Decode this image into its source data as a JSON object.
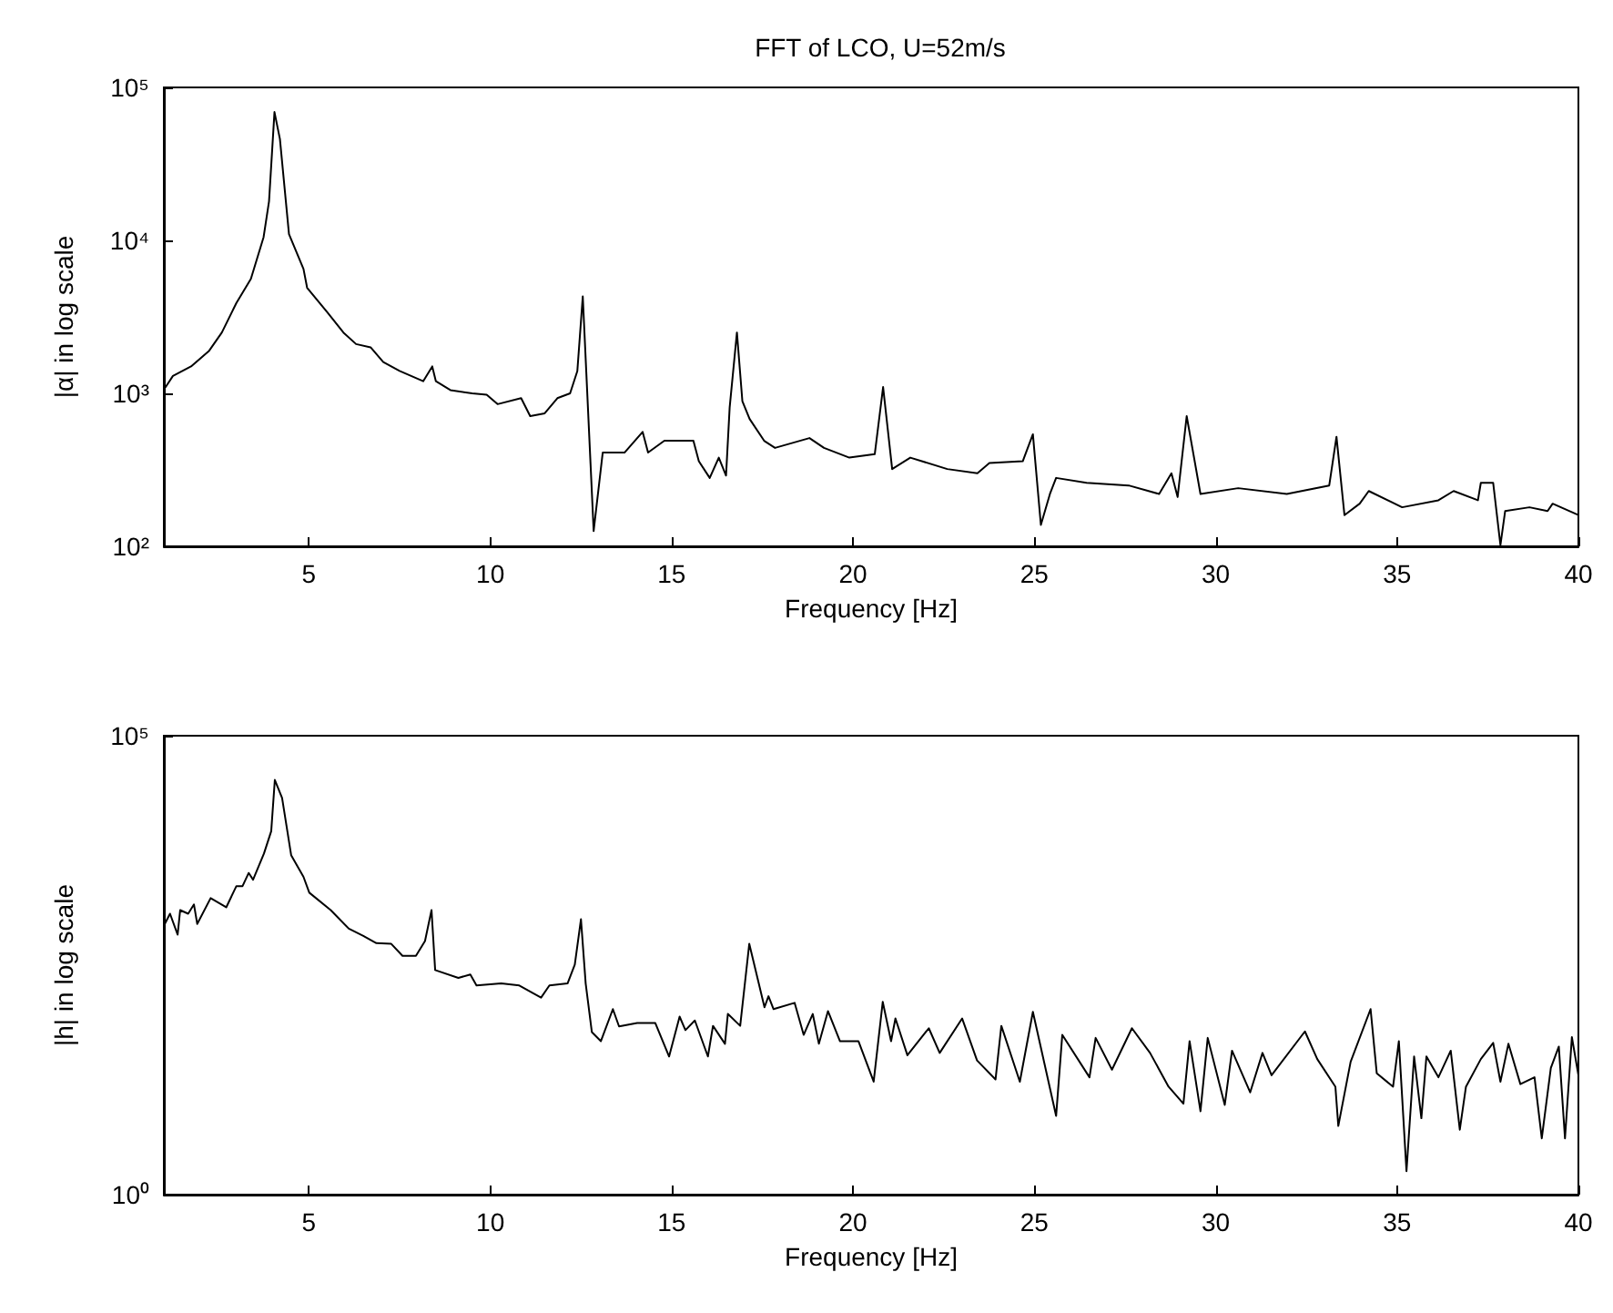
{
  "chart_data": [
    {
      "type": "line",
      "title": "FFT of LCO, U=52m/s",
      "xlabel": "Frequency [Hz]",
      "ylabel": "|α| in log scale",
      "log": "y",
      "grid": false,
      "xlim": [
        1,
        40
      ],
      "xticks": [
        5,
        10,
        15,
        20,
        25,
        30,
        35,
        40
      ],
      "ylim": [
        100,
        100000
      ],
      "yticks": [
        {
          "value": 100,
          "label": "10²"
        },
        {
          "value": 1000,
          "label": "10³"
        },
        {
          "value": 10000,
          "label": "10⁴"
        },
        {
          "value": 100000,
          "label": "10⁵"
        }
      ],
      "x": [
        1.05,
        1.25,
        1.75,
        2.25,
        2.6,
        3.0,
        3.4,
        3.75,
        3.9,
        4.05,
        4.2,
        4.45,
        4.85,
        4.95,
        5.5,
        5.95,
        6.3,
        6.7,
        7.05,
        7.5,
        8.15,
        8.4,
        8.5,
        8.9,
        9.5,
        9.9,
        10.2,
        10.85,
        11.1,
        11.5,
        11.85,
        12.2,
        12.4,
        12.55,
        12.85,
        13.1,
        13.7,
        14.2,
        14.35,
        14.8,
        15.6,
        15.75,
        16.05,
        16.3,
        16.5,
        16.6,
        16.8,
        16.95,
        17.15,
        17.55,
        17.85,
        18.8,
        19.2,
        19.9,
        20.6,
        20.83,
        21.08,
        21.58,
        22.6,
        23.43,
        23.76,
        24.68,
        24.96,
        25.18,
        25.43,
        25.6,
        26.44,
        27.6,
        28.44,
        28.78,
        28.95,
        29.2,
        29.58,
        30.62,
        31.96,
        33.13,
        33.33,
        33.55,
        33.97,
        34.22,
        35.14,
        36.14,
        36.56,
        37.23,
        37.31,
        37.65,
        37.85,
        37.98,
        38.65,
        39.15,
        39.29,
        40
      ],
      "series": [
        {
          "color": "#000000",
          "values": [
            1100,
            1300,
            1500,
            1900,
            2500,
            3900,
            5600,
            10500,
            18000,
            69000,
            46000,
            11000,
            6500,
            4900,
            3400,
            2500,
            2100,
            2000,
            1600,
            1400,
            1200,
            1500,
            1200,
            1050,
            1000,
            980,
            850,
            930,
            710,
            740,
            930,
            1000,
            1400,
            4300,
            126,
            410,
            410,
            560,
            410,
            490,
            490,
            360,
            280,
            380,
            290,
            810,
            2500,
            890,
            680,
            490,
            440,
            510,
            440,
            380,
            400,
            1100,
            320,
            380,
            320,
            300,
            350,
            360,
            540,
            138,
            220,
            280,
            260,
            250,
            220,
            300,
            210,
            710,
            220,
            240,
            220,
            250,
            520,
            160,
            190,
            230,
            180,
            200,
            230,
            200,
            260,
            260,
            102,
            170,
            180,
            170,
            190,
            160
          ]
        }
      ]
    },
    {
      "type": "line",
      "xlabel": "Frequency [Hz]",
      "ylabel": "|h| in log scale",
      "log": "y",
      "grid": false,
      "xlim": [
        1,
        40
      ],
      "xticks": [
        5,
        10,
        15,
        20,
        25,
        30,
        35,
        40
      ],
      "ylim": [
        1,
        100000
      ],
      "yticks": [
        {
          "value": 1,
          "label": "10⁰"
        },
        {
          "value": 100000,
          "label": "10⁵"
        }
      ],
      "x": [
        1.0,
        1.17,
        1.38,
        1.45,
        1.67,
        1.83,
        1.92,
        2.29,
        2.72,
        3.0,
        3.17,
        3.34,
        3.46,
        3.76,
        3.96,
        4.06,
        4.26,
        4.51,
        4.85,
        5.01,
        5.6,
        6.1,
        6.5,
        6.86,
        7.27,
        7.58,
        7.95,
        8.2,
        8.38,
        8.48,
        9.12,
        9.45,
        9.62,
        10.3,
        10.8,
        11.4,
        11.63,
        12.13,
        12.33,
        12.5,
        12.63,
        12.8,
        13.05,
        13.38,
        13.55,
        14.05,
        14.55,
        14.93,
        15.22,
        15.38,
        15.64,
        16.0,
        16.14,
        16.47,
        16.55,
        16.89,
        17.14,
        17.56,
        17.67,
        17.81,
        18.39,
        18.64,
        18.89,
        19.06,
        19.31,
        19.64,
        20.15,
        20.57,
        20.82,
        21.05,
        21.17,
        21.5,
        22.09,
        22.39,
        23.01,
        23.42,
        23.93,
        24.09,
        24.6,
        24.96,
        25.6,
        25.77,
        26.52,
        26.69,
        27.14,
        27.69,
        28.19,
        28.7,
        29.11,
        29.28,
        29.58,
        29.78,
        30.25,
        30.45,
        30.95,
        31.29,
        31.54,
        32.46,
        32.8,
        33.3,
        33.38,
        33.72,
        34.27,
        34.44,
        34.89,
        35.05,
        35.26,
        35.47,
        35.67,
        35.81,
        36.14,
        36.48,
        36.73,
        36.9,
        37.31,
        37.65,
        37.85,
        38.07,
        38.4,
        38.79,
        38.99,
        39.24,
        39.46,
        39.63,
        39.82,
        40
      ],
      "series": [
        {
          "color": "#000000",
          "values": [
            850,
            1150,
            680,
            1260,
            1150,
            1450,
            890,
            1700,
            1350,
            2300,
            2300,
            3200,
            2700,
            5200,
            9100,
            33000,
            21000,
            5000,
            2900,
            1950,
            1260,
            790,
            660,
            550,
            540,
            400,
            400,
            580,
            1260,
            280,
            230,
            250,
            190,
            200,
            190,
            140,
            190,
            200,
            320,
            1000,
            200,
            59,
            47,
            105,
            68,
            74,
            74,
            32,
            87,
            62,
            79,
            32,
            69,
            44,
            93,
            69,
            540,
            110,
            145,
            105,
            123,
            55,
            93,
            44,
            100,
            47,
            47,
            17,
            126,
            47,
            83,
            33,
            65,
            35,
            83,
            29,
            18,
            69,
            17,
            98,
            7.2,
            55,
            19,
            51,
            23,
            65,
            35,
            15,
            9.8,
            47,
            8.1,
            51,
            9.5,
            37,
            13,
            35,
            20,
            60,
            30,
            15,
            5.6,
            28,
            105,
            21,
            15,
            47,
            1.8,
            32,
            6.8,
            32,
            19,
            37,
            5.1,
            15,
            30,
            45,
            17,
            44,
            16,
            19,
            4.1,
            24,
            41,
            4.1,
            52,
            20
          ]
        }
      ]
    }
  ]
}
